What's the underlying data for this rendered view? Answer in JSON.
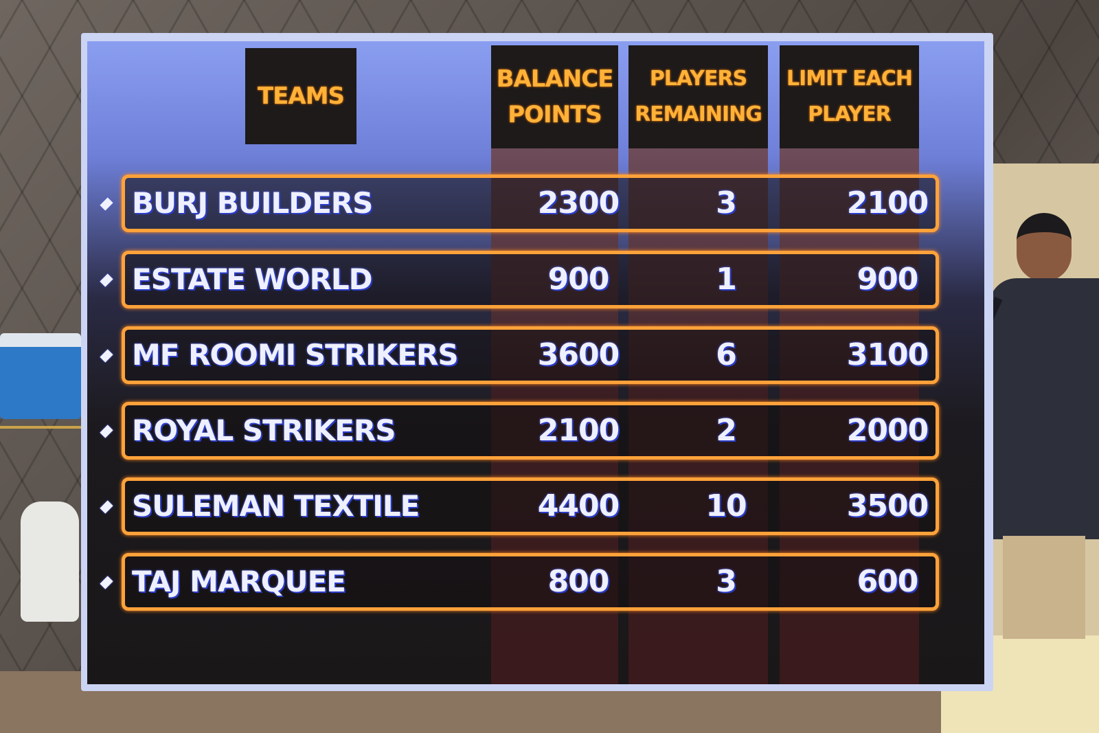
{
  "board": {
    "headers": {
      "teams": "TEAMS",
      "balance_line1": "BALANCE",
      "balance_line2": "POINTS",
      "players_line1": "PLAYERS",
      "players_line2": "REMAINING",
      "limit_line1": "LIMIT EACH",
      "limit_line2": "PLAYER"
    },
    "rows": [
      {
        "team": "BURJ BUILDERS",
        "balance_points": "2300",
        "players_remaining": "3",
        "limit_each_player": "2100"
      },
      {
        "team": "ESTATE WORLD",
        "balance_points": "900",
        "players_remaining": "1",
        "limit_each_player": "900"
      },
      {
        "team": "MF ROOMI STRIKERS",
        "balance_points": "3600",
        "players_remaining": "6",
        "limit_each_player": "3100"
      },
      {
        "team": "ROYAL STRIKERS",
        "balance_points": "2100",
        "players_remaining": "2",
        "limit_each_player": "2000"
      },
      {
        "team": "SULEMAN TEXTILE",
        "balance_points": "4400",
        "players_remaining": "10",
        "limit_each_player": "3500"
      },
      {
        "team": "TAJ MARQUEE",
        "balance_points": "800",
        "players_remaining": "3",
        "limit_each_player": "600"
      }
    ],
    "colors": {
      "header_text": "#ffb238",
      "row_border": "#ffa23a",
      "value_text": "#eef0ff",
      "value_shadow": "#2a3cc8"
    },
    "bullet_icon": "diamond-icon"
  }
}
